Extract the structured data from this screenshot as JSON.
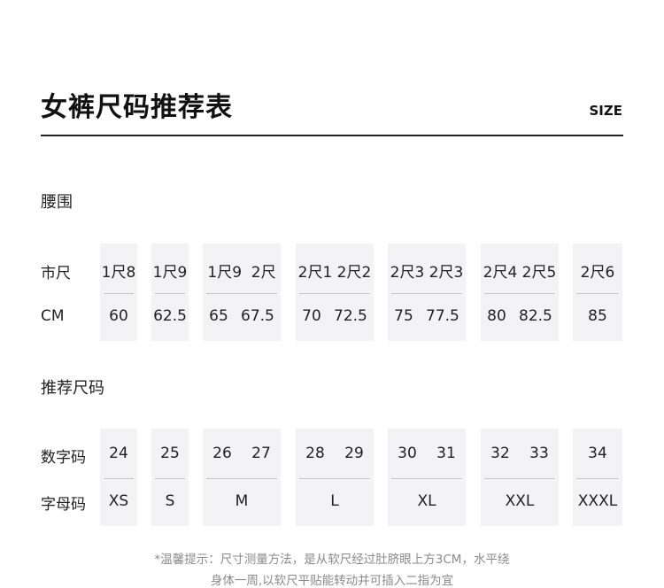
{
  "header": {
    "title": "女裤尺码推荐表",
    "size_label": "SIZE"
  },
  "waist": {
    "section": "腰围",
    "row1_label": "市尺",
    "row2_label": "CM",
    "columns": [
      {
        "top": [
          "1尺8"
        ],
        "bottom": [
          "60"
        ]
      },
      {
        "top": [
          "1尺9"
        ],
        "bottom": [
          "62.5"
        ]
      },
      {
        "top": [
          "1尺9",
          "2尺"
        ],
        "bottom": [
          "65",
          "67.5"
        ]
      },
      {
        "top": [
          "2尺1",
          "2尺2"
        ],
        "bottom": [
          "70",
          "72.5"
        ]
      },
      {
        "top": [
          "2尺3",
          "2尺3"
        ],
        "bottom": [
          "75",
          "77.5"
        ]
      },
      {
        "top": [
          "2尺4",
          "2尺5"
        ],
        "bottom": [
          "80",
          "82.5"
        ]
      },
      {
        "top": [
          "2尺6"
        ],
        "bottom": [
          "85"
        ]
      }
    ]
  },
  "recommend": {
    "section": "推荐尺码",
    "row1_label": "数字码",
    "row2_label": "字母码",
    "columns": [
      {
        "top": [
          "24"
        ],
        "bottom": [
          "XS"
        ]
      },
      {
        "top": [
          "25"
        ],
        "bottom": [
          "S"
        ]
      },
      {
        "top": [
          "26",
          "27"
        ],
        "bottom": [
          "M"
        ]
      },
      {
        "top": [
          "28",
          "29"
        ],
        "bottom": [
          "L"
        ]
      },
      {
        "top": [
          "30",
          "31"
        ],
        "bottom": [
          "XL"
        ]
      },
      {
        "top": [
          "32",
          "33"
        ],
        "bottom": [
          "XXL"
        ]
      },
      {
        "top": [
          "34"
        ],
        "bottom": [
          "XXXL"
        ]
      }
    ]
  },
  "note": {
    "line1": "*温馨提示：尺寸测量方法，是从软尺经过肚脐眼上方3CM，水平绕",
    "line2": "身体一周,以软尺平贴能转动并可插入二指为宜"
  }
}
